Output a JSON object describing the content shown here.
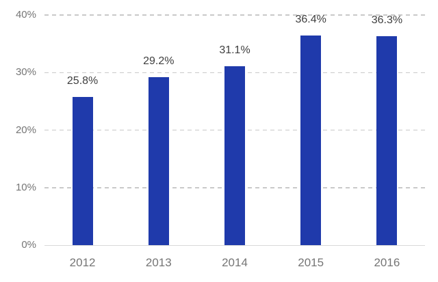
{
  "chart_data": {
    "type": "bar",
    "title": "",
    "xlabel": "",
    "ylabel": "",
    "categories": [
      "2012",
      "2013",
      "2014",
      "2015",
      "2016"
    ],
    "values": [
      25.8,
      29.2,
      31.1,
      36.4,
      36.3
    ],
    "value_labels": [
      "25.8%",
      "29.2%",
      "31.1%",
      "36.4%",
      "36.3%"
    ],
    "ylim": [
      0,
      40
    ],
    "yticks": [
      0,
      10,
      20,
      30,
      40
    ],
    "ytick_labels": [
      "0%",
      "10%",
      "20%",
      "30%",
      "40%"
    ],
    "grid": "horizontal-dashed",
    "legend": "none",
    "colors": {
      "bar": "#1f3aab",
      "value_label_text": "#3e3e3e",
      "axis_tick_text": "#757575",
      "gridline": "#c9c9c9",
      "baseline": "#d8d8d8",
      "background": "#ffffff"
    }
  }
}
